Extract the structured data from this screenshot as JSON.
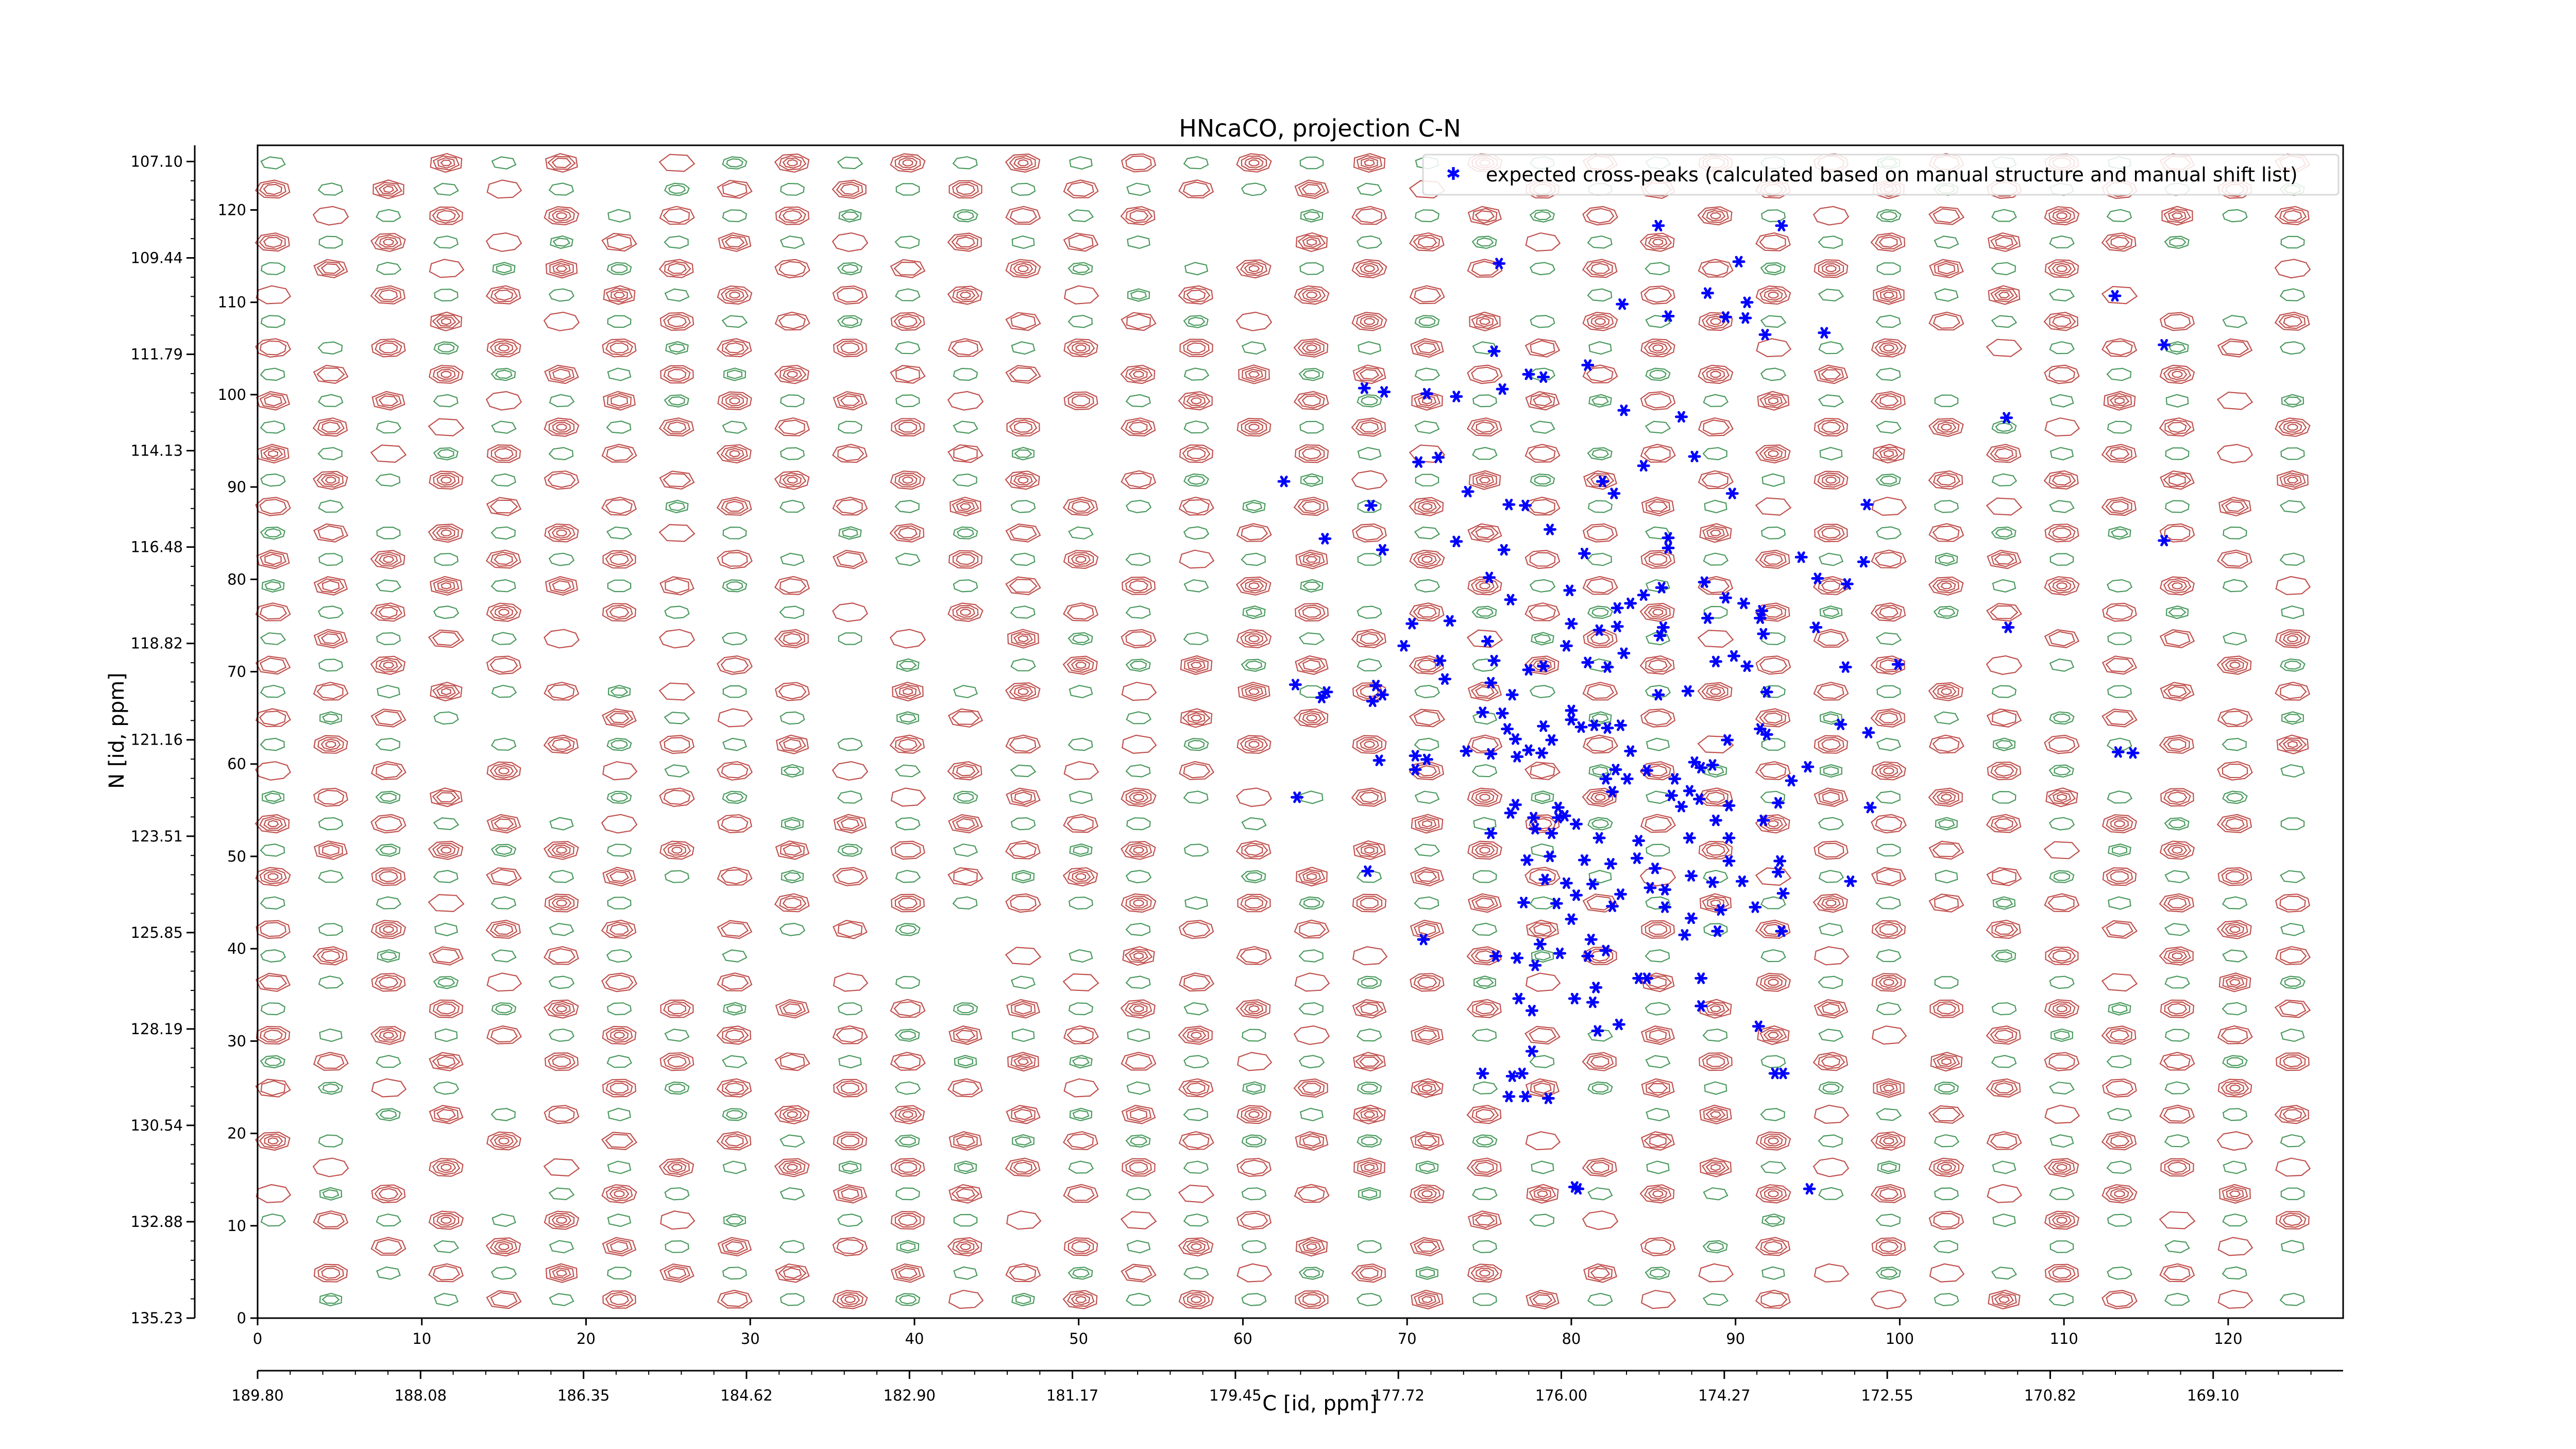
{
  "chart_data": {
    "type": "scatter",
    "title": "HNcaCO, projection C-N",
    "xlabel": "C [id, ppm]",
    "ylabel": "N [id, ppm]",
    "xlim": [
      0,
      127
    ],
    "ylim": [
      0,
      127
    ],
    "x_index_ticks": [
      "0",
      "10",
      "20",
      "30",
      "40",
      "50",
      "60",
      "70",
      "80",
      "90",
      "100",
      "110",
      "120"
    ],
    "y_index_ticks": [
      "0",
      "10",
      "20",
      "30",
      "40",
      "50",
      "60",
      "70",
      "80",
      "90",
      "100",
      "110",
      "120"
    ],
    "x_ppm_ticks": [
      "189.80",
      "188.08",
      "186.35",
      "184.62",
      "182.90",
      "181.17",
      "179.45",
      "177.72",
      "176.00",
      "174.27",
      "172.55",
      "170.82",
      "169.10"
    ],
    "y_ppm_ticks": [
      "135.23",
      "132.88",
      "130.54",
      "128.19",
      "125.85",
      "123.51",
      "121.16",
      "118.82",
      "116.48",
      "114.13",
      "111.79",
      "109.44",
      "107.10"
    ],
    "legend": {
      "label": "expected cross-peaks (calculated based on manual structure and manual shift list)",
      "placement": "top-right"
    },
    "background": "contour map of positive (red) and negative (green) spectrum levels",
    "series": [
      {
        "color": "#0000ff",
        "points": [
          [
            85.3,
            118.3
          ],
          [
            92.8,
            118.3
          ],
          [
            75.6,
            114.2
          ],
          [
            90.2,
            114.4
          ],
          [
            90.7,
            110.0
          ],
          [
            89.4,
            108.4
          ],
          [
            90.6,
            108.3
          ],
          [
            91.8,
            106.5
          ],
          [
            83.1,
            109.8
          ],
          [
            85.9,
            108.5
          ],
          [
            88.3,
            111.0
          ],
          [
            95.4,
            106.7
          ],
          [
            113.1,
            110.7
          ],
          [
            116.1,
            105.4
          ],
          [
            75.3,
            104.7
          ],
          [
            81.0,
            103.2
          ],
          [
            77.4,
            102.2
          ],
          [
            75.8,
            100.6
          ],
          [
            67.4,
            100.7
          ],
          [
            68.6,
            100.3
          ],
          [
            71.2,
            100.1
          ],
          [
            73.0,
            99.8
          ],
          [
            78.3,
            101.9
          ],
          [
            83.2,
            98.3
          ],
          [
            86.7,
            97.6
          ],
          [
            106.5,
            97.5
          ],
          [
            84.4,
            92.3
          ],
          [
            87.5,
            93.3
          ],
          [
            70.7,
            92.7
          ],
          [
            71.9,
            93.2
          ],
          [
            62.5,
            90.6
          ],
          [
            73.7,
            89.5
          ],
          [
            76.2,
            88.1
          ],
          [
            77.2,
            88.0
          ],
          [
            81.9,
            90.6
          ],
          [
            82.6,
            89.3
          ],
          [
            89.8,
            89.3
          ],
          [
            67.8,
            88.0
          ],
          [
            98.0,
            88.1
          ],
          [
            116.1,
            84.2
          ],
          [
            65.0,
            84.4
          ],
          [
            68.5,
            83.2
          ],
          [
            73.0,
            84.1
          ],
          [
            75.9,
            83.2
          ],
          [
            78.7,
            85.4
          ],
          [
            80.8,
            82.8
          ],
          [
            85.9,
            84.5
          ],
          [
            85.9,
            83.4
          ],
          [
            94.0,
            82.4
          ],
          [
            97.8,
            81.9
          ],
          [
            75.0,
            80.2
          ],
          [
            76.3,
            77.8
          ],
          [
            79.9,
            78.8
          ],
          [
            82.8,
            76.9
          ],
          [
            83.6,
            77.4
          ],
          [
            84.4,
            78.3
          ],
          [
            85.5,
            79.1
          ],
          [
            88.1,
            79.7
          ],
          [
            89.4,
            78.0
          ],
          [
            90.5,
            77.4
          ],
          [
            88.3,
            75.8
          ],
          [
            91.6,
            76.6
          ],
          [
            95.0,
            80.1
          ],
          [
            96.8,
            79.5
          ],
          [
            70.3,
            75.2
          ],
          [
            72.6,
            75.5
          ],
          [
            80.0,
            75.2
          ],
          [
            81.7,
            74.5
          ],
          [
            82.8,
            74.9
          ],
          [
            85.6,
            74.8
          ],
          [
            94.9,
            74.8
          ],
          [
            106.6,
            74.8
          ],
          [
            91.7,
            74.1
          ],
          [
            91.5,
            75.8
          ],
          [
            74.9,
            73.3
          ],
          [
            79.7,
            72.8
          ],
          [
            85.4,
            73.9
          ],
          [
            89.9,
            71.7
          ],
          [
            69.8,
            72.8
          ],
          [
            72.0,
            71.2
          ],
          [
            75.3,
            71.2
          ],
          [
            81.0,
            71.0
          ],
          [
            83.2,
            72.0
          ],
          [
            88.8,
            71.1
          ],
          [
            90.7,
            70.6
          ],
          [
            96.7,
            70.5
          ],
          [
            99.9,
            70.8
          ],
          [
            72.3,
            69.2
          ],
          [
            77.4,
            70.2
          ],
          [
            78.3,
            70.6
          ],
          [
            82.2,
            70.5
          ],
          [
            75.1,
            68.8
          ],
          [
            68.1,
            68.5
          ],
          [
            68.5,
            67.5
          ],
          [
            76.4,
            67.5
          ],
          [
            87.1,
            67.9
          ],
          [
            91.9,
            67.8
          ],
          [
            63.2,
            68.6
          ],
          [
            65.1,
            67.8
          ],
          [
            75.8,
            65.5
          ],
          [
            67.9,
            66.8
          ],
          [
            74.6,
            65.6
          ],
          [
            80.0,
            65.8
          ],
          [
            85.3,
            67.5
          ],
          [
            64.8,
            67.2
          ],
          [
            76.1,
            63.8
          ],
          [
            78.3,
            64.1
          ],
          [
            80.0,
            64.8
          ],
          [
            81.4,
            64.2
          ],
          [
            82.2,
            63.9
          ],
          [
            83.0,
            64.2
          ],
          [
            91.5,
            63.8
          ],
          [
            91.9,
            63.2
          ],
          [
            96.4,
            64.3
          ],
          [
            98.1,
            63.4
          ],
          [
            76.6,
            62.7
          ],
          [
            78.8,
            62.6
          ],
          [
            80.6,
            64.0
          ],
          [
            70.5,
            60.9
          ],
          [
            73.6,
            61.4
          ],
          [
            75.1,
            61.1
          ],
          [
            77.4,
            61.5
          ],
          [
            78.2,
            61.2
          ],
          [
            83.6,
            61.4
          ],
          [
            89.5,
            62.6
          ],
          [
            113.3,
            61.3
          ],
          [
            114.2,
            61.2
          ],
          [
            68.3,
            60.4
          ],
          [
            71.2,
            60.5
          ],
          [
            76.7,
            60.8
          ],
          [
            87.9,
            59.6
          ],
          [
            70.5,
            59.4
          ],
          [
            82.7,
            59.4
          ],
          [
            84.6,
            59.3
          ],
          [
            87.5,
            60.2
          ],
          [
            94.4,
            59.7
          ],
          [
            82.5,
            57.0
          ],
          [
            87.2,
            57.1
          ],
          [
            88.6,
            59.9
          ],
          [
            82.1,
            58.4
          ],
          [
            83.4,
            58.4
          ],
          [
            86.3,
            58.4
          ],
          [
            93.4,
            58.2
          ],
          [
            63.3,
            56.4
          ],
          [
            76.6,
            55.6
          ],
          [
            79.2,
            55.3
          ],
          [
            79.6,
            54.4
          ],
          [
            86.1,
            56.6
          ],
          [
            86.7,
            55.4
          ],
          [
            87.8,
            56.2
          ],
          [
            89.6,
            55.5
          ],
          [
            92.6,
            55.8
          ],
          [
            98.2,
            55.3
          ],
          [
            77.7,
            54.2
          ],
          [
            79.2,
            54.2
          ],
          [
            75.1,
            52.5
          ],
          [
            76.3,
            54.7
          ],
          [
            77.8,
            53.0
          ],
          [
            80.3,
            53.5
          ],
          [
            78.8,
            52.5
          ],
          [
            81.7,
            52.0
          ],
          [
            84.1,
            51.7
          ],
          [
            87.2,
            52.0
          ],
          [
            88.8,
            53.9
          ],
          [
            89.6,
            52.0
          ],
          [
            91.7,
            53.9
          ],
          [
            80.8,
            49.6
          ],
          [
            82.4,
            49.2
          ],
          [
            77.3,
            49.6
          ],
          [
            78.7,
            50.0
          ],
          [
            84.0,
            49.8
          ],
          [
            85.1,
            48.7
          ],
          [
            89.6,
            49.5
          ],
          [
            92.7,
            49.5
          ],
          [
            67.6,
            48.4
          ],
          [
            78.4,
            47.5
          ],
          [
            81.3,
            47.0
          ],
          [
            84.8,
            46.6
          ],
          [
            87.3,
            47.9
          ],
          [
            88.6,
            47.2
          ],
          [
            90.4,
            47.3
          ],
          [
            92.6,
            48.3
          ],
          [
            79.7,
            47.1
          ],
          [
            80.3,
            45.8
          ],
          [
            83.0,
            45.9
          ],
          [
            85.7,
            46.4
          ],
          [
            92.9,
            46.0
          ],
          [
            97.0,
            47.3
          ],
          [
            77.1,
            45.0
          ],
          [
            79.1,
            44.9
          ],
          [
            82.5,
            44.6
          ],
          [
            85.7,
            44.5
          ],
          [
            89.1,
            44.2
          ],
          [
            91.2,
            44.5
          ],
          [
            80.0,
            43.2
          ],
          [
            87.3,
            43.3
          ],
          [
            88.9,
            41.9
          ],
          [
            71.0,
            41.0
          ],
          [
            81.2,
            41.0
          ],
          [
            86.9,
            41.5
          ],
          [
            92.8,
            41.9
          ],
          [
            78.1,
            40.5
          ],
          [
            75.4,
            39.2
          ],
          [
            76.7,
            39.0
          ],
          [
            77.8,
            38.2
          ],
          [
            82.1,
            39.8
          ],
          [
            79.3,
            39.5
          ],
          [
            81.0,
            39.2
          ],
          [
            84.1,
            36.8
          ],
          [
            84.6,
            36.8
          ],
          [
            81.5,
            35.8
          ],
          [
            87.9,
            36.8
          ],
          [
            80.2,
            34.6
          ],
          [
            77.6,
            33.3
          ],
          [
            81.3,
            34.2
          ],
          [
            76.8,
            34.6
          ],
          [
            87.9,
            33.8
          ],
          [
            82.9,
            31.8
          ],
          [
            91.4,
            31.6
          ],
          [
            81.6,
            31.1
          ],
          [
            77.6,
            28.9
          ],
          [
            74.6,
            26.5
          ],
          [
            76.4,
            26.2
          ],
          [
            77.0,
            26.5
          ],
          [
            92.4,
            26.5
          ],
          [
            92.9,
            26.5
          ],
          [
            76.2,
            24.0
          ],
          [
            77.2,
            24.0
          ],
          [
            78.6,
            23.8
          ],
          [
            80.4,
            14.0
          ],
          [
            94.5,
            14.0
          ],
          [
            80.2,
            14.2
          ]
        ]
      }
    ]
  }
}
